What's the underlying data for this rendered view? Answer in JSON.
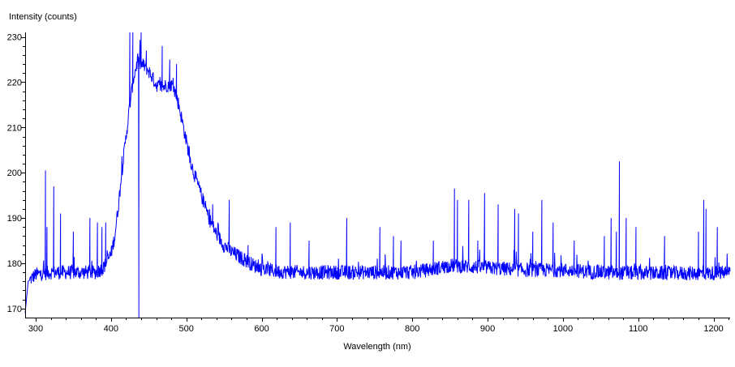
{
  "chart_data": {
    "type": "line",
    "title": "",
    "xlabel": "Wavelength (nm)",
    "ylabel": "Intensity (counts)",
    "xlim": [
      286,
      1222
    ],
    "ylim": [
      168,
      231
    ],
    "x_ticks": [
      300,
      400,
      500,
      600,
      700,
      800,
      900,
      1000,
      1100,
      1200
    ],
    "y_ticks": [
      170,
      180,
      190,
      200,
      210,
      220,
      230
    ],
    "grid": false,
    "legend": "none",
    "line_color": "#0000ff",
    "series": [
      {
        "x": [
          286,
          290,
          300,
          320,
          340,
          360,
          380,
          390,
          400,
          405,
          410,
          415,
          420,
          425,
          430,
          435,
          440,
          445,
          450,
          455,
          460,
          465,
          470,
          475,
          480,
          485,
          490,
          495,
          500,
          505,
          510,
          520,
          530,
          540,
          550,
          560,
          570,
          580,
          590,
          600,
          620,
          650,
          700,
          750,
          800,
          820,
          850,
          900,
          950,
          1000,
          1050,
          1100,
          1150,
          1200,
          1222
        ],
        "values": [
          169,
          176,
          177.5,
          178,
          178,
          178,
          178,
          179,
          182,
          186,
          193,
          201,
          208,
          215,
          221,
          224.5,
          224,
          223.5,
          222.5,
          221,
          219.5,
          219,
          219,
          219.5,
          219.5,
          218,
          215,
          211,
          207,
          203,
          200,
          195,
          190,
          186.5,
          184,
          182.5,
          181.5,
          180.5,
          179.5,
          178.8,
          178.2,
          178,
          178,
          178,
          178,
          178.5,
          179.5,
          179,
          178.5,
          178.5,
          178,
          177.8,
          177.8,
          177.8,
          178
        ]
      }
    ],
    "spikes": [
      {
        "x": 313,
        "y": 200.5
      },
      {
        "x": 315,
        "y": 188
      },
      {
        "x": 324,
        "y": 197
      },
      {
        "x": 333,
        "y": 191
      },
      {
        "x": 350,
        "y": 187
      },
      {
        "x": 372,
        "y": 190
      },
      {
        "x": 382,
        "y": 189
      },
      {
        "x": 388,
        "y": 188
      },
      {
        "x": 393,
        "y": 189
      },
      {
        "x": 425,
        "y": 231
      },
      {
        "x": 429,
        "y": 231
      },
      {
        "x": 437,
        "y": 168
      },
      {
        "x": 440,
        "y": 231
      },
      {
        "x": 447,
        "y": 227
      },
      {
        "x": 468,
        "y": 228
      },
      {
        "x": 478,
        "y": 225
      },
      {
        "x": 487,
        "y": 224
      },
      {
        "x": 535,
        "y": 193
      },
      {
        "x": 557,
        "y": 194
      },
      {
        "x": 582,
        "y": 184
      },
      {
        "x": 619,
        "y": 188
      },
      {
        "x": 638,
        "y": 189
      },
      {
        "x": 663,
        "y": 185
      },
      {
        "x": 713,
        "y": 190
      },
      {
        "x": 757,
        "y": 188
      },
      {
        "x": 775,
        "y": 186
      },
      {
        "x": 785,
        "y": 185
      },
      {
        "x": 828,
        "y": 185
      },
      {
        "x": 856,
        "y": 196.5
      },
      {
        "x": 860,
        "y": 194
      },
      {
        "x": 875,
        "y": 194
      },
      {
        "x": 887,
        "y": 185
      },
      {
        "x": 896,
        "y": 195.5
      },
      {
        "x": 914,
        "y": 193
      },
      {
        "x": 936,
        "y": 192
      },
      {
        "x": 941,
        "y": 191
      },
      {
        "x": 960,
        "y": 187
      },
      {
        "x": 972,
        "y": 194
      },
      {
        "x": 987,
        "y": 189
      },
      {
        "x": 1015,
        "y": 185
      },
      {
        "x": 1055,
        "y": 186
      },
      {
        "x": 1064,
        "y": 190
      },
      {
        "x": 1071,
        "y": 187
      },
      {
        "x": 1075,
        "y": 202.5
      },
      {
        "x": 1084,
        "y": 190
      },
      {
        "x": 1097,
        "y": 188
      },
      {
        "x": 1135,
        "y": 186
      },
      {
        "x": 1180,
        "y": 187
      },
      {
        "x": 1187,
        "y": 194
      },
      {
        "x": 1190,
        "y": 192
      },
      {
        "x": 1205,
        "y": 188
      }
    ]
  }
}
